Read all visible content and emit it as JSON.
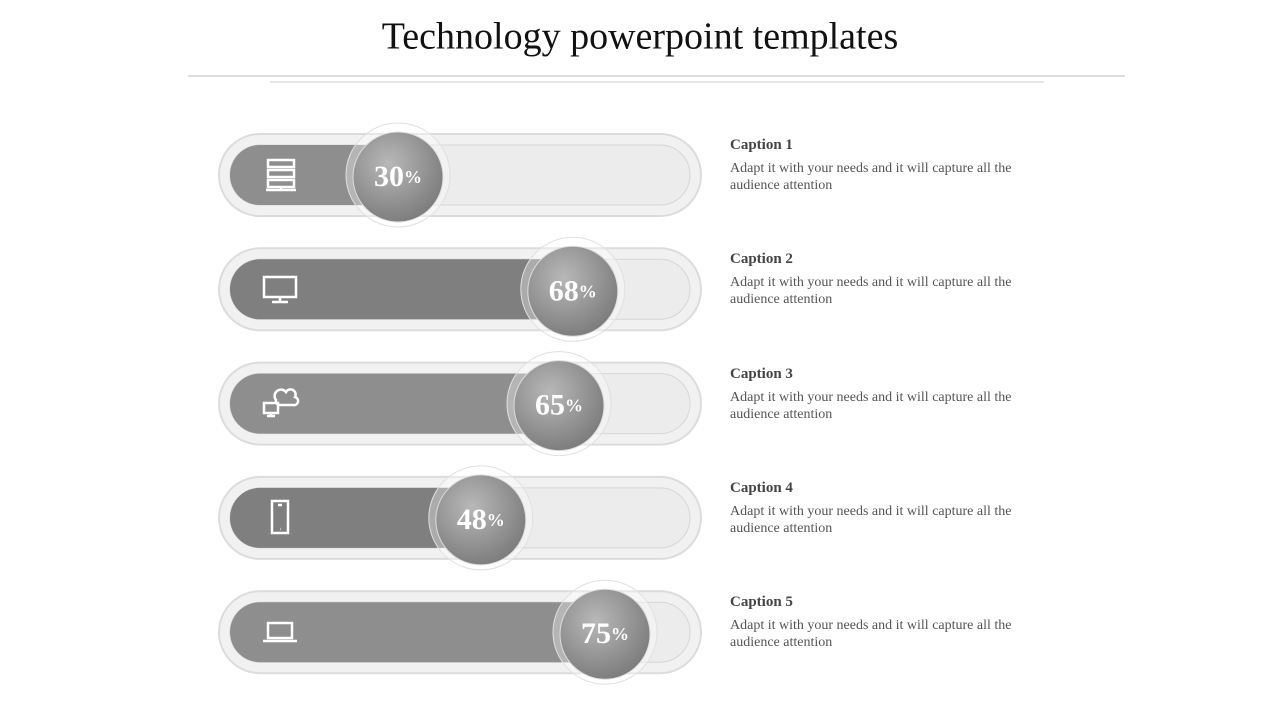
{
  "header": {
    "title": "Technology powerpoint templates"
  },
  "items": [
    {
      "value": 30,
      "unit": "%",
      "caption": "Caption 1",
      "text": "Adapt it with your needs and it will capture all the audience attention"
    },
    {
      "value": 68,
      "unit": "%",
      "caption": "Caption 2",
      "text": "Adapt it with your needs and it will capture all the audience attention"
    },
    {
      "value": 65,
      "unit": "%",
      "caption": "Caption 3",
      "text": "Adapt it with your needs and it will capture all the audience attention"
    },
    {
      "value": 48,
      "unit": "%",
      "caption": "Caption 4",
      "text": "Adapt it with your needs and it will capture all the audience attention"
    },
    {
      "value": 75,
      "unit": "%",
      "caption": "Caption 5",
      "text": "Adapt it with your needs and it will capture all the audience attention"
    }
  ]
}
